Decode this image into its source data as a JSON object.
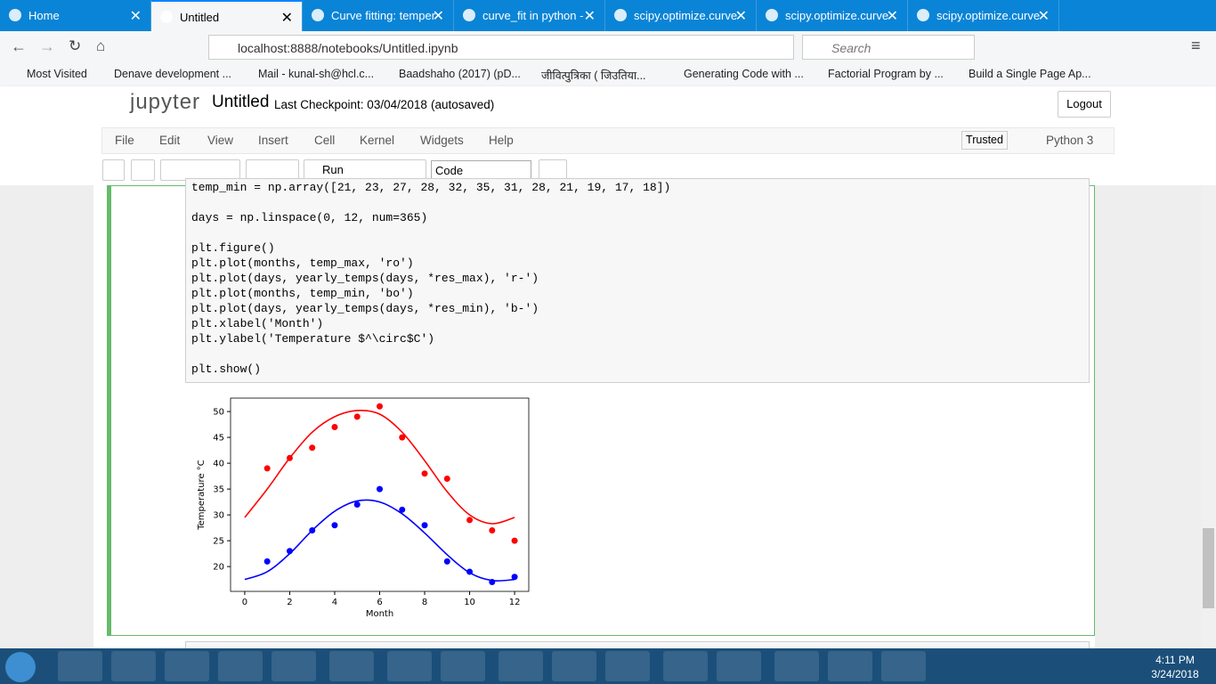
{
  "browser": {
    "tabs": [
      "Home",
      "Untitled",
      "Curve fitting: temper",
      "curve_fit in python -",
      "scipy.optimize.curve",
      "scipy.optimize.curve",
      "scipy.optimize.curve"
    ],
    "url": "localhost:8888/notebooks/Untitled.ipynb",
    "search": "Search",
    "bookmarks": [
      "Most Visited",
      "Denave development ...",
      "Mail - kunal-sh@hcl.c...",
      "Baadshaho (2017) (pD...",
      "जीवित्पुत्रिका ( जिउतिया...",
      "Generating Code with ...",
      "Factorial Program by ...",
      "Build a Single Page Ap..."
    ]
  },
  "jupyter": {
    "logo": "jupyter",
    "notebook_name": "Untitled",
    "checkpoint": "Last Checkpoint: 03/04/2018",
    "autosaved": "(autosaved)",
    "logout": "Logout",
    "menu": [
      "File",
      "Edit",
      "View",
      "Insert",
      "Cell",
      "Kernel",
      "Widgets",
      "Help"
    ],
    "trusted": "Trusted",
    "kernel": "Python 3",
    "run": "Run",
    "cell_type": "Code"
  },
  "cell": {
    "code_blocks": [
      [
        "temp_min = np.array([21, 23, 27, 28, 32, 35, 31, 28, 21, 19, 17, 18])"
      ],
      [
        "days = np.linspace(0, 12, num=365)"
      ],
      [
        "plt.figure()",
        "plt.plot(months, temp_max, 'ro')",
        "plt.plot(days, yearly_temps(days, *res_max), 'r-')",
        "plt.plot(months, temp_min, 'bo')",
        "plt.plot(days, yearly_temps(days, *res_min), 'b-')",
        "plt.xlabel('Month')",
        "plt.ylabel('Temperature $^\\circ$C')"
      ],
      [
        "plt.show()"
      ]
    ]
  },
  "chart_data": {
    "type": "line",
    "x_label": "Month",
    "y_label": "Temperature °C",
    "xlim": [
      -0.63,
      12.63
    ],
    "ylim": [
      15.2,
      52.6
    ],
    "xticks": [
      0,
      2,
      4,
      6,
      8,
      10,
      12
    ],
    "yticks": [
      20,
      25,
      30,
      35,
      40,
      45,
      50
    ],
    "series": [
      {
        "color": "#ff0000",
        "mode": "markers",
        "x": [
          1,
          2,
          3,
          4,
          5,
          6,
          7,
          8,
          9,
          10,
          11,
          12
        ],
        "values": [
          39,
          41,
          43,
          47,
          49,
          51,
          45,
          38,
          37,
          29,
          27,
          25
        ]
      },
      {
        "color": "#ff0000",
        "mode": "line",
        "x": [
          0,
          1,
          2,
          3,
          4,
          5,
          6,
          7,
          8,
          9,
          10,
          11,
          12
        ],
        "values": [
          29.5,
          35,
          41,
          46,
          49,
          50.2,
          49.5,
          46,
          40.5,
          34.5,
          30,
          28.3,
          29.5
        ]
      },
      {
        "color": "#0000ff",
        "mode": "markers",
        "x": [
          1,
          2,
          3,
          4,
          5,
          6,
          7,
          8,
          9,
          10,
          11,
          12
        ],
        "values": [
          21,
          23,
          27,
          28,
          32,
          35,
          31,
          28,
          21,
          19,
          17,
          18
        ]
      },
      {
        "color": "#0000ff",
        "mode": "line",
        "x": [
          0,
          1,
          2,
          3,
          4,
          5,
          6,
          7,
          8,
          9,
          10,
          11,
          12
        ],
        "values": [
          17.5,
          19,
          22.5,
          27,
          30.7,
          32.7,
          32.5,
          30.2,
          26.5,
          22.3,
          18.8,
          17.3,
          17.5
        ]
      }
    ]
  },
  "taskbar": {
    "time": "4:11 PM",
    "date": "3/24/2018"
  }
}
